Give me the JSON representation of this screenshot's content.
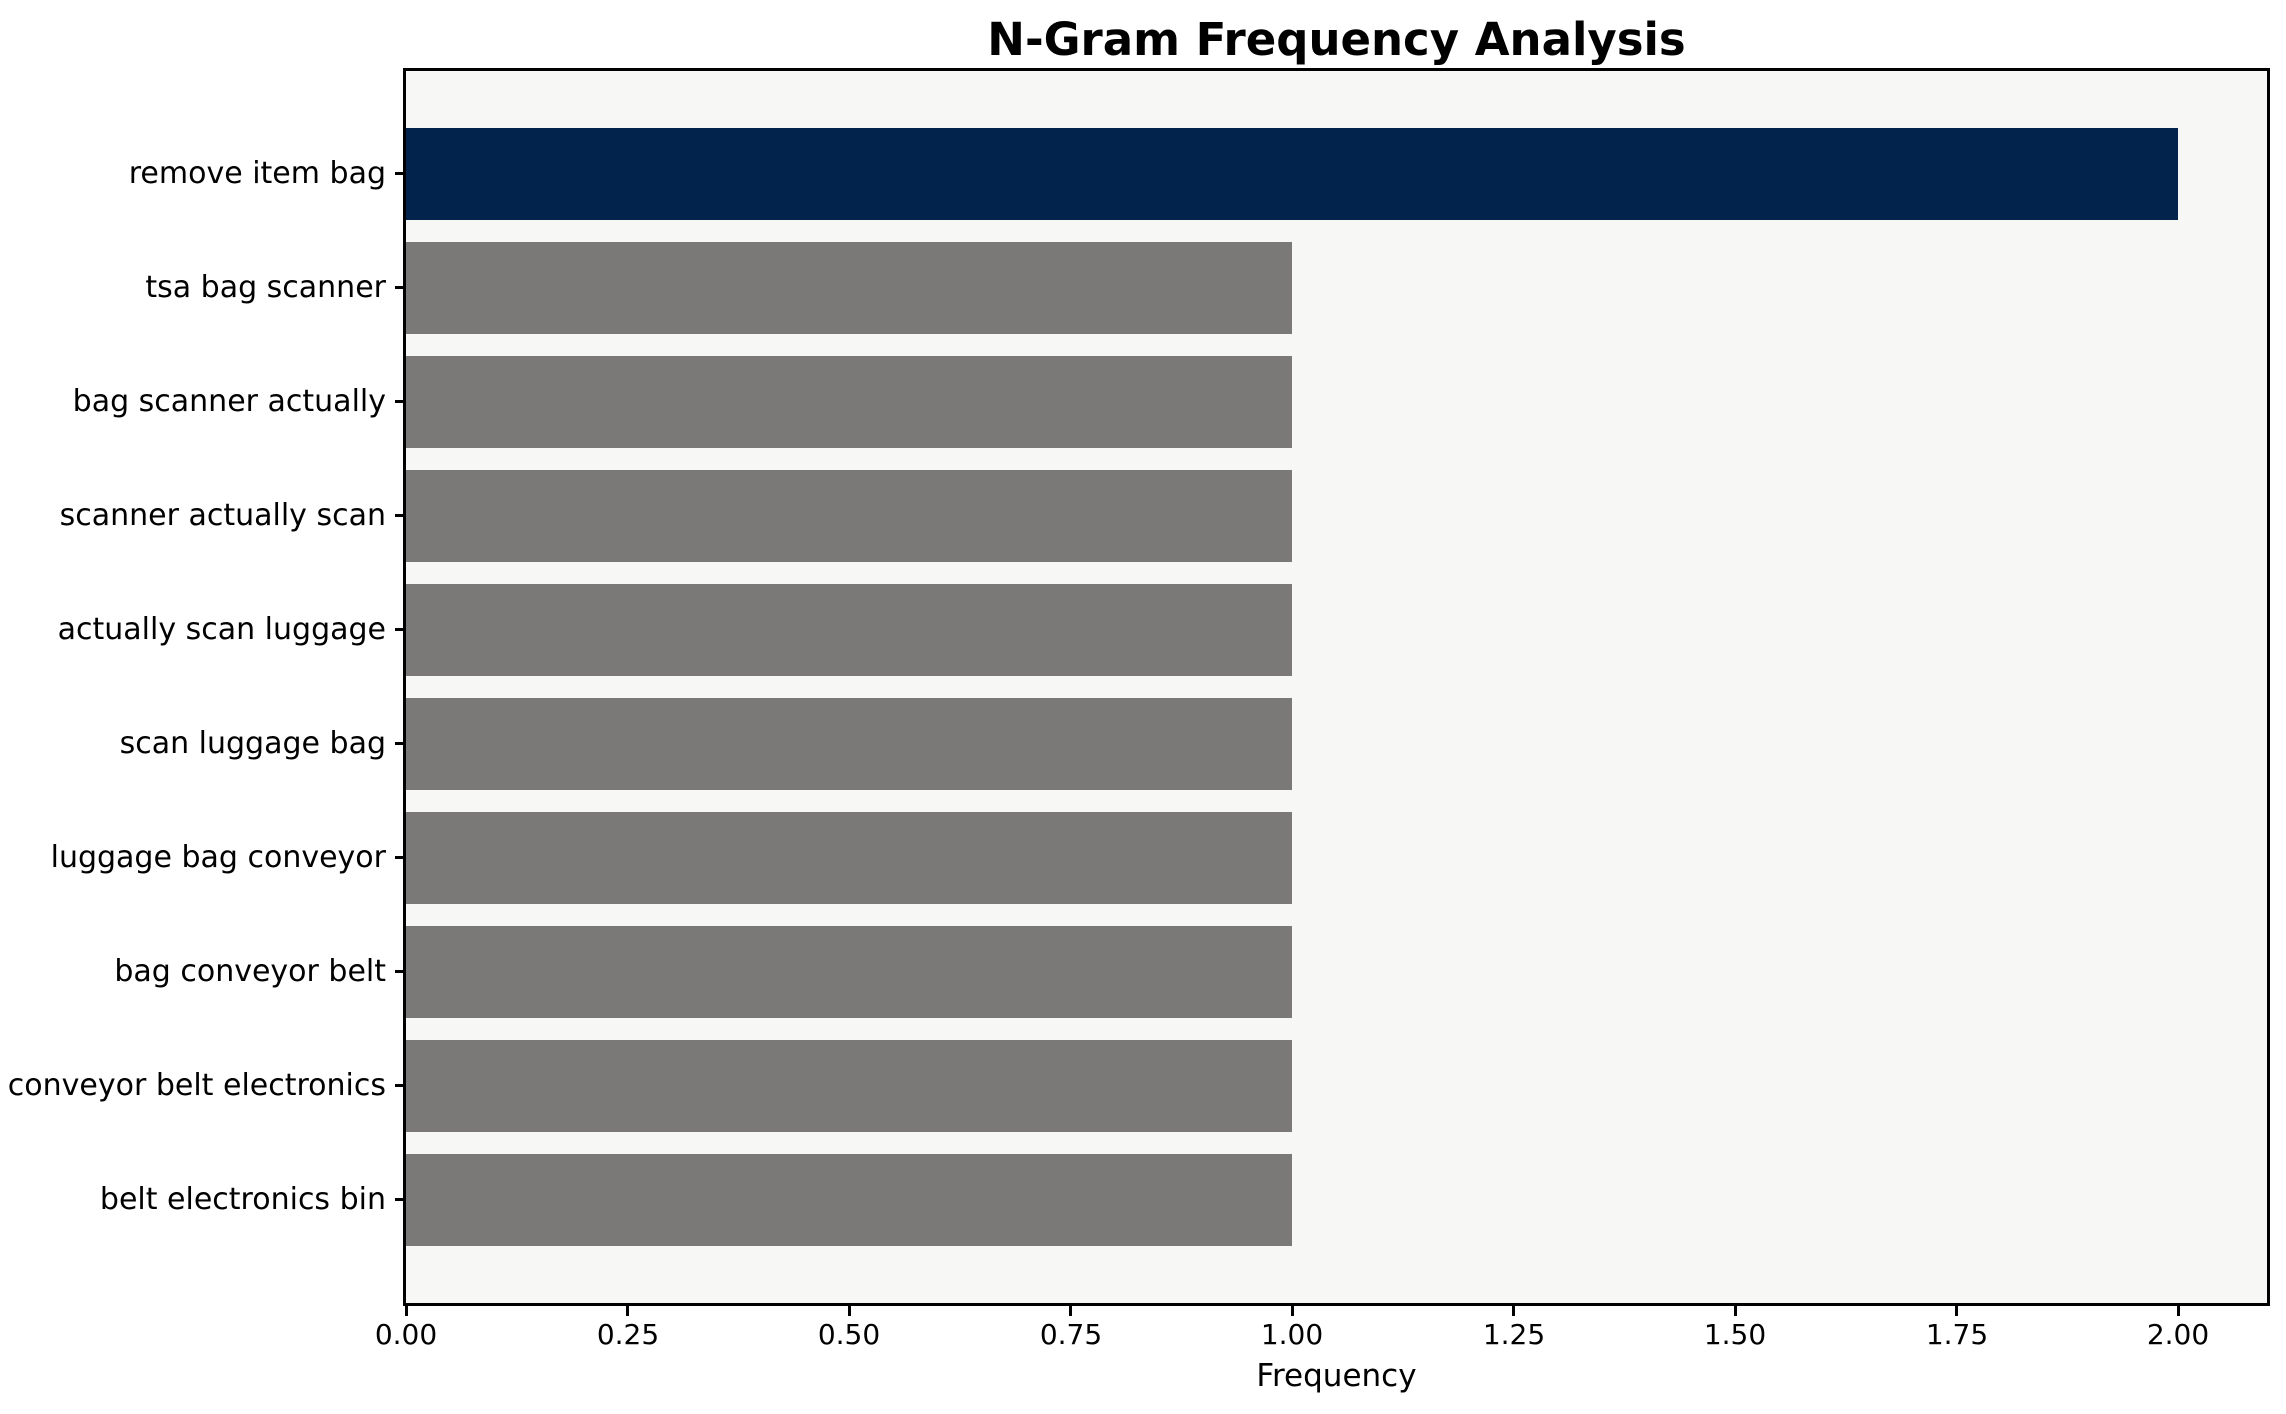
{
  "chart_data": {
    "type": "bar",
    "orientation": "horizontal",
    "title": "N-Gram Frequency Analysis",
    "xlabel": "Frequency",
    "ylabel": "",
    "categories": [
      "remove item bag",
      "tsa bag scanner",
      "bag scanner actually",
      "scanner actually scan",
      "actually scan luggage",
      "scan luggage bag",
      "luggage bag conveyor",
      "bag conveyor belt",
      "conveyor belt electronics",
      "belt electronics bin"
    ],
    "values": [
      2,
      1,
      1,
      1,
      1,
      1,
      1,
      1,
      1,
      1
    ],
    "bar_colors": [
      "#02234c",
      "#7b7977",
      "#7b7977",
      "#7b7977",
      "#7b7977",
      "#7b7977",
      "#7b7977",
      "#7b7977",
      "#7b7977",
      "#7b7977"
    ],
    "highlight_color": "#02234c",
    "base_color": "#7b7977",
    "xlim": [
      0,
      2.1
    ],
    "xticks": [
      {
        "value": 0.0,
        "label": "0.00"
      },
      {
        "value": 0.25,
        "label": "0.25"
      },
      {
        "value": 0.5,
        "label": "0.50"
      },
      {
        "value": 0.75,
        "label": "0.75"
      },
      {
        "value": 1.0,
        "label": "1.00"
      },
      {
        "value": 1.25,
        "label": "1.25"
      },
      {
        "value": 1.5,
        "label": "1.50"
      },
      {
        "value": 1.75,
        "label": "1.75"
      },
      {
        "value": 2.0,
        "label": "2.00"
      }
    ],
    "grid": false,
    "legend": null,
    "plot_background": "#f7f7f6",
    "figure_background": "#ffffff",
    "axis_color": "#000000"
  }
}
